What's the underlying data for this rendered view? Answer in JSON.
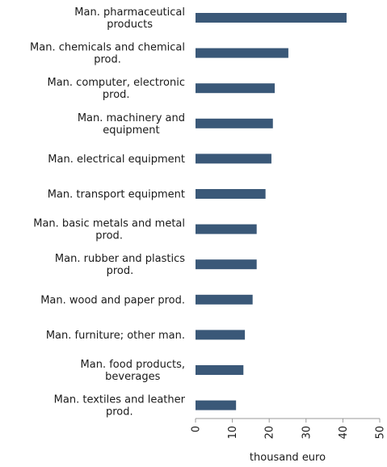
{
  "chart_data": {
    "type": "bar",
    "orientation": "horizontal",
    "categories": [
      "Man.  pharmaceutical products",
      "Man. chemicals and chemical prod.",
      "Man. computer, electronic prod.",
      "Man. machinery and equipment",
      "Man. electrical equipment",
      "Man. transport equipment",
      "Man. basic metals and metal prod.",
      "Man. rubber and plastics prod.",
      "Man. wood and paper prod.",
      "Man. furniture; other man.",
      "Man. food products, beverages",
      "Man. textiles and leather prod."
    ],
    "label_lines": [
      [
        "Man.  pharmaceutical",
        "products"
      ],
      [
        "Man. chemicals and chemical",
        "prod."
      ],
      [
        "Man. computer, electronic",
        "prod."
      ],
      [
        "Man. machinery and",
        "equipment"
      ],
      [
        "Man. electrical equipment"
      ],
      [
        "Man. transport equipment"
      ],
      [
        "Man. basic metals and metal",
        "prod."
      ],
      [
        "Man. rubber and plastics",
        "prod."
      ],
      [
        "Man. wood and paper prod."
      ],
      [
        "Man. furniture; other man."
      ],
      [
        "Man. food products,",
        "beverages"
      ],
      [
        "Man. textiles and leather",
        "prod."
      ]
    ],
    "values": [
      41,
      25.2,
      21.5,
      21,
      20.6,
      19,
      16.6,
      16.6,
      15.5,
      13.4,
      13,
      11
    ],
    "xlabel": "thousand euro",
    "ylabel": "",
    "xlim": [
      0,
      50
    ],
    "xticks": [
      0,
      10,
      20,
      30,
      40,
      50
    ],
    "bar_color": "#3a5878",
    "grid": false,
    "legend": "none"
  }
}
